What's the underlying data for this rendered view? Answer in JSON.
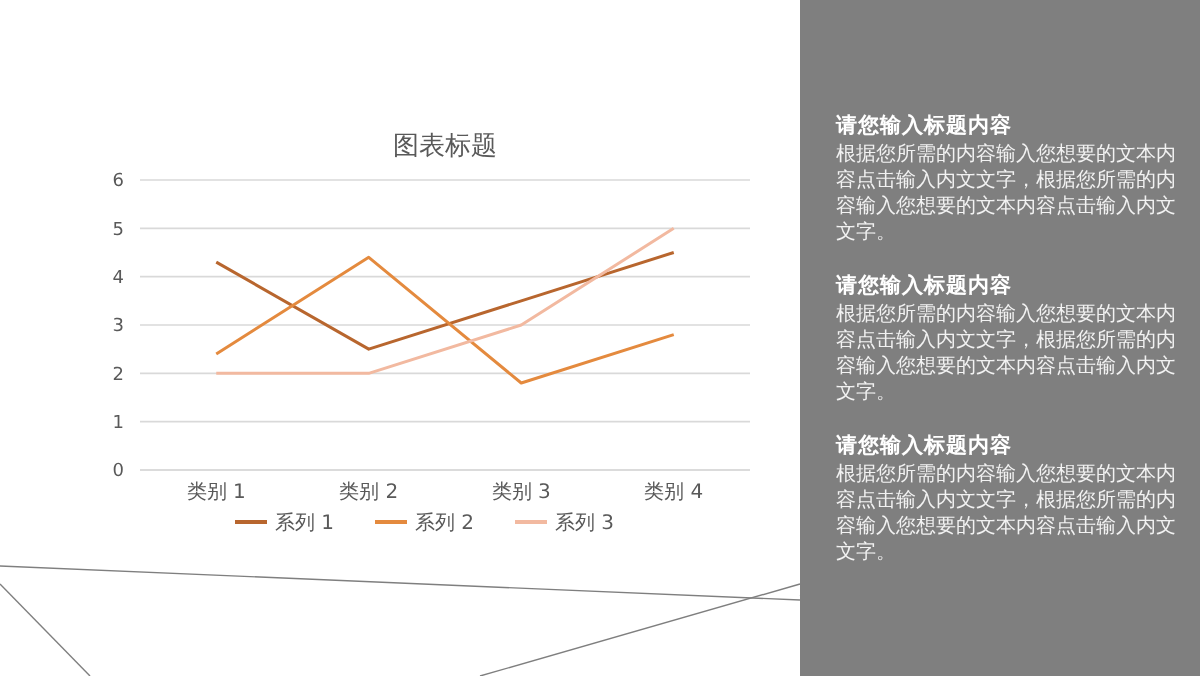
{
  "chart_data": [
    {
      "type": "line",
      "title": "图表标题",
      "categories": [
        "类别 1",
        "类别 2",
        "类别 3",
        "类别 4"
      ],
      "series": [
        {
          "name": "系列 1",
          "color": "#b8662e",
          "values": [
            4.3,
            2.5,
            3.5,
            4.5
          ]
        },
        {
          "name": "系列 2",
          "color": "#e48a3e",
          "values": [
            2.4,
            4.4,
            1.8,
            2.8
          ]
        },
        {
          "name": "系列 3",
          "color": "#f2b9a0",
          "values": [
            2,
            2,
            3,
            5
          ]
        }
      ],
      "ylim": [
        0,
        6
      ],
      "yticks": [
        0,
        1,
        2,
        3,
        4,
        5,
        6
      ],
      "grid": "y",
      "legend": "bottom",
      "marker": "none",
      "line_style": "solid"
    },
    {
      "type": "other",
      "annotations": [
        "请您输入标题内容",
        "根据您所需的内容输入您想要的文本内容点击输入内文文字，根据您所需的内容输入您想要的文本内容点击输入内文文字。",
        "请您输入标题内容",
        "根据您所需的内容输入您想要的文本内容点击输入内文文字，根据您所需的内容输入您想要的文本内容点击输入内文文字。",
        "请您输入标题内容",
        "根据您所需的内容输入您想要的文本内容点击输入内文文字，根据您所需的内容输入您想要的文本内容点击输入内文文字。"
      ]
    }
  ]
}
